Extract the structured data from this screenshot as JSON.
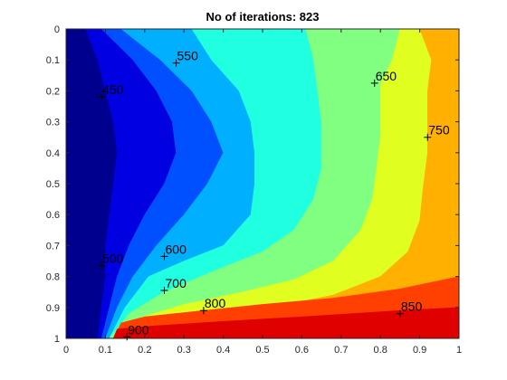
{
  "chart_data": {
    "type": "contour",
    "title": "No of iterations: 823",
    "xlabel": "",
    "ylabel": "",
    "xlim": [
      0,
      1
    ],
    "ylim": [
      0,
      1
    ],
    "y_axis_reversed": true,
    "x_ticks": [
      0,
      0.1,
      0.2,
      0.3,
      0.4,
      0.5,
      0.6,
      0.7,
      0.8,
      0.9,
      1
    ],
    "y_ticks": [
      0,
      0.1,
      0.2,
      0.3,
      0.4,
      0.5,
      0.6,
      0.7,
      0.8,
      0.9,
      1
    ],
    "x_tick_labels": [
      "0",
      "0.1",
      "0.2",
      "0.3",
      "0.4",
      "0.5",
      "0.6",
      "0.7",
      "0.8",
      "0.9",
      "1"
    ],
    "y_tick_labels": [
      "0",
      "0.1",
      "0.2",
      "0.3",
      "0.4",
      "0.5",
      "0.6",
      "0.7",
      "0.8",
      "0.9",
      "1"
    ],
    "colormap": "jet",
    "levels": [
      {
        "value": 450,
        "color": "#00008f"
      },
      {
        "value": 500,
        "color": "#0000e0"
      },
      {
        "value": 550,
        "color": "#0050ff"
      },
      {
        "value": 600,
        "color": "#00b0ff"
      },
      {
        "value": 650,
        "color": "#20ffe0"
      },
      {
        "value": 700,
        "color": "#80ff80"
      },
      {
        "value": 750,
        "color": "#e0ff20"
      },
      {
        "value": 800,
        "color": "#ffb000"
      },
      {
        "value": 850,
        "color": "#ff4000"
      },
      {
        "value": 900,
        "color": "#e00000"
      }
    ],
    "contour_labels": [
      {
        "text": "450",
        "x": 0.09,
        "y": 0.22
      },
      {
        "text": "500",
        "x": 0.09,
        "y": 0.765
      },
      {
        "text": "550",
        "x": 0.28,
        "y": 0.11
      },
      {
        "text": "600",
        "x": 0.25,
        "y": 0.735
      },
      {
        "text": "650",
        "x": 0.785,
        "y": 0.175
      },
      {
        "text": "700",
        "x": 0.25,
        "y": 0.845
      },
      {
        "text": "750",
        "x": 0.92,
        "y": 0.35
      },
      {
        "text": "800",
        "x": 0.35,
        "y": 0.91
      },
      {
        "text": "850",
        "x": 0.85,
        "y": 0.92
      },
      {
        "text": "900",
        "x": 0.155,
        "y": 0.995
      }
    ],
    "regions": [
      {
        "name": "region-above-450",
        "color": "#00008f",
        "points": [
          [
            0,
            0
          ],
          [
            1,
            0
          ],
          [
            1,
            1
          ],
          [
            0,
            1
          ]
        ]
      },
      {
        "name": "region-above-500",
        "color": "#0000e0",
        "points": [
          [
            0.05,
            0
          ],
          [
            1,
            0
          ],
          [
            1,
            1
          ],
          [
            0.08,
            1
          ],
          [
            0.09,
            0.9
          ],
          [
            0.1,
            0.8
          ],
          [
            0.1,
            0.7
          ],
          [
            0.11,
            0.6
          ],
          [
            0.12,
            0.5
          ],
          [
            0.13,
            0.4
          ],
          [
            0.12,
            0.3
          ],
          [
            0.1,
            0.2
          ],
          [
            0.08,
            0.1
          ]
        ]
      },
      {
        "name": "region-above-550",
        "color": "#0050ff",
        "points": [
          [
            0.09,
            0
          ],
          [
            1,
            0
          ],
          [
            1,
            1
          ],
          [
            0.09,
            1
          ],
          [
            0.11,
            0.9
          ],
          [
            0.13,
            0.8
          ],
          [
            0.16,
            0.7
          ],
          [
            0.2,
            0.6
          ],
          [
            0.25,
            0.5
          ],
          [
            0.28,
            0.4
          ],
          [
            0.27,
            0.3
          ],
          [
            0.23,
            0.2
          ],
          [
            0.17,
            0.1
          ]
        ]
      },
      {
        "name": "region-above-600",
        "color": "#00b0ff",
        "points": [
          [
            0.14,
            0
          ],
          [
            1,
            0
          ],
          [
            1,
            1
          ],
          [
            0.1,
            1
          ],
          [
            0.13,
            0.9
          ],
          [
            0.17,
            0.8
          ],
          [
            0.23,
            0.7
          ],
          [
            0.3,
            0.6
          ],
          [
            0.36,
            0.5
          ],
          [
            0.4,
            0.4
          ],
          [
            0.37,
            0.3
          ],
          [
            0.32,
            0.2
          ],
          [
            0.24,
            0.1
          ]
        ]
      },
      {
        "name": "region-above-650",
        "color": "#20ffe0",
        "points": [
          [
            0.6,
            0
          ],
          [
            1,
            0
          ],
          [
            1,
            1
          ],
          [
            0.11,
            1
          ],
          [
            0.15,
            0.9
          ],
          [
            0.21,
            0.8
          ],
          [
            0.3,
            0.75
          ],
          [
            0.4,
            0.7
          ],
          [
            0.47,
            0.6
          ],
          [
            0.48,
            0.5
          ],
          [
            0.48,
            0.4
          ],
          [
            0.47,
            0.3
          ],
          [
            0.44,
            0.2
          ],
          [
            0.37,
            0.1
          ],
          [
            0.32,
            0
          ]
        ]
      },
      {
        "name": "region-above-700",
        "color": "#80ff80",
        "points": [
          [
            0.72,
            0
          ],
          [
            1,
            0
          ],
          [
            1,
            1
          ],
          [
            0.11,
            1
          ],
          [
            0.16,
            0.92
          ],
          [
            0.25,
            0.85
          ],
          [
            0.38,
            0.78
          ],
          [
            0.5,
            0.72
          ],
          [
            0.58,
            0.65
          ],
          [
            0.63,
            0.55
          ],
          [
            0.65,
            0.45
          ],
          [
            0.65,
            0.3
          ],
          [
            0.64,
            0.2
          ],
          [
            0.63,
            0.1
          ],
          [
            0.61,
            0
          ]
        ]
      },
      {
        "name": "region-above-750",
        "color": "#e0ff20",
        "points": [
          [
            0.85,
            0
          ],
          [
            1,
            0
          ],
          [
            1,
            1
          ],
          [
            0.12,
            1
          ],
          [
            0.17,
            0.94
          ],
          [
            0.3,
            0.89
          ],
          [
            0.45,
            0.85
          ],
          [
            0.58,
            0.81
          ],
          [
            0.68,
            0.75
          ],
          [
            0.75,
            0.65
          ],
          [
            0.78,
            0.55
          ],
          [
            0.79,
            0.45
          ],
          [
            0.8,
            0.35
          ],
          [
            0.8,
            0.25
          ],
          [
            0.8,
            0.18
          ],
          [
            0.83,
            0.1
          ]
        ]
      },
      {
        "name": "region-above-800",
        "color": "#ffb000",
        "points": [
          [
            0.9,
            0
          ],
          [
            1,
            0
          ],
          [
            1,
            1
          ],
          [
            0.12,
            1
          ],
          [
            0.18,
            0.96
          ],
          [
            0.35,
            0.93
          ],
          [
            0.52,
            0.9
          ],
          [
            0.68,
            0.86
          ],
          [
            0.8,
            0.8
          ],
          [
            0.87,
            0.72
          ],
          [
            0.9,
            0.62
          ],
          [
            0.91,
            0.5
          ],
          [
            0.92,
            0.4
          ],
          [
            0.92,
            0.3
          ],
          [
            0.92,
            0.2
          ],
          [
            0.93,
            0.1
          ]
        ]
      },
      {
        "name": "region-above-850",
        "color": "#ff4000",
        "points": [
          [
            0.12,
            1
          ],
          [
            1,
            1
          ],
          [
            1,
            0.8
          ],
          [
            0.85,
            0.84
          ],
          [
            0.68,
            0.87
          ],
          [
            0.5,
            0.89
          ],
          [
            0.35,
            0.91
          ],
          [
            0.2,
            0.93
          ],
          [
            0.14,
            0.95
          ]
        ]
      },
      {
        "name": "region-above-900",
        "color": "#e00000",
        "points": [
          [
            0.12,
            1
          ],
          [
            1,
            1
          ],
          [
            1,
            0.9
          ],
          [
            0.85,
            0.91
          ],
          [
            0.6,
            0.93
          ],
          [
            0.4,
            0.945
          ],
          [
            0.22,
            0.96
          ],
          [
            0.13,
            0.97
          ]
        ]
      }
    ]
  }
}
